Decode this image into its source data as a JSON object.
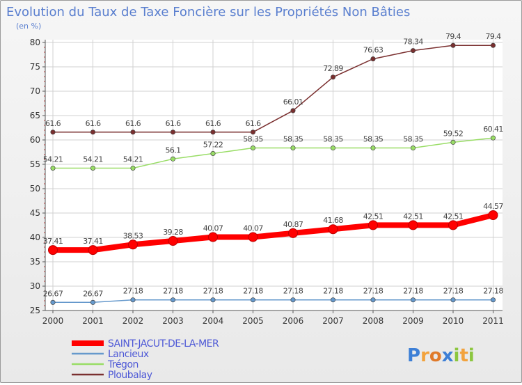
{
  "colors": {
    "saint_jacut": "#ff0000",
    "lancieux": "#6699cc",
    "tregon": "#99dd66",
    "ploubalay": "#7a2f2f",
    "grid": "#d0d0d0",
    "title": "#5a7fcf",
    "legend_text": "#4d58d6"
  },
  "brand": {
    "text": "Proxiti",
    "letters": [
      {
        "ch": "P",
        "color": "#3d7fd6"
      },
      {
        "ch": "r",
        "color": "#f2a23c"
      },
      {
        "ch": "o",
        "color": "#e07a2a"
      },
      {
        "ch": "x",
        "color": "#3d7fd6"
      },
      {
        "ch": "i",
        "color": "#8cc63f"
      },
      {
        "ch": "t",
        "color": "#f2a23c"
      },
      {
        "ch": "i",
        "color": "#8cc63f"
      }
    ]
  },
  "chart_data": {
    "type": "line",
    "title": "Evolution du Taux de Taxe Foncière sur les Propriétés Non Bâties",
    "subtitle": "(en %)",
    "xlabel": "",
    "ylabel": "",
    "categories": [
      "2000",
      "2001",
      "2002",
      "2003",
      "2004",
      "2005",
      "2006",
      "2007",
      "2008",
      "2009",
      "2010",
      "2011"
    ],
    "ylim": [
      25,
      80
    ],
    "yticks": [
      25,
      30,
      35,
      40,
      45,
      50,
      55,
      60,
      65,
      70,
      75,
      80
    ],
    "grid": true,
    "legend_position": "bottom-left",
    "series": [
      {
        "name": "SAINT-JACUT-DE-LA-MER",
        "color_key": "saint_jacut",
        "width": "thick",
        "values": [
          37.41,
          37.41,
          38.53,
          39.28,
          40.07,
          40.07,
          40.87,
          41.68,
          42.51,
          42.51,
          42.51,
          44.57
        ],
        "labels": [
          "37.41",
          "37.41",
          "38.53",
          "39.28",
          "40.07",
          "40.07",
          "40.87",
          "41.68",
          "42.51",
          "42.51",
          "42.51",
          "44.57"
        ]
      },
      {
        "name": "Lancieux",
        "color_key": "lancieux",
        "width": "thin",
        "values": [
          26.67,
          26.67,
          27.18,
          27.18,
          27.18,
          27.18,
          27.18,
          27.18,
          27.18,
          27.18,
          27.18,
          27.18
        ],
        "labels": [
          "26.67",
          "26.67",
          "27.18",
          "27.18",
          "27.18",
          "27.18",
          "27.18",
          "27.18",
          "27.18",
          "27.18",
          "27.18",
          "27.18"
        ]
      },
      {
        "name": "Trégon",
        "color_key": "tregon",
        "width": "thin",
        "values": [
          54.21,
          54.21,
          54.21,
          56.1,
          57.22,
          58.35,
          58.35,
          58.35,
          58.35,
          58.35,
          59.52,
          60.41
        ],
        "labels": [
          "54.21",
          "54.21",
          "54.21",
          "56.1",
          "57.22",
          "58.35",
          "58.35",
          "58.35",
          "58.35",
          "58.35",
          "59.52",
          "60.41"
        ]
      },
      {
        "name": "Ploubalay",
        "color_key": "ploubalay",
        "width": "thin",
        "values": [
          61.6,
          61.6,
          61.6,
          61.6,
          61.6,
          61.6,
          66.01,
          72.89,
          76.63,
          78.34,
          79.4,
          79.4
        ],
        "labels": [
          "61.6",
          "61.6",
          "61.6",
          "61.6",
          "61.6",
          "61.6",
          "66.01",
          "72.89",
          "76.63",
          "78.34",
          "79.4",
          "79.4"
        ]
      }
    ]
  }
}
